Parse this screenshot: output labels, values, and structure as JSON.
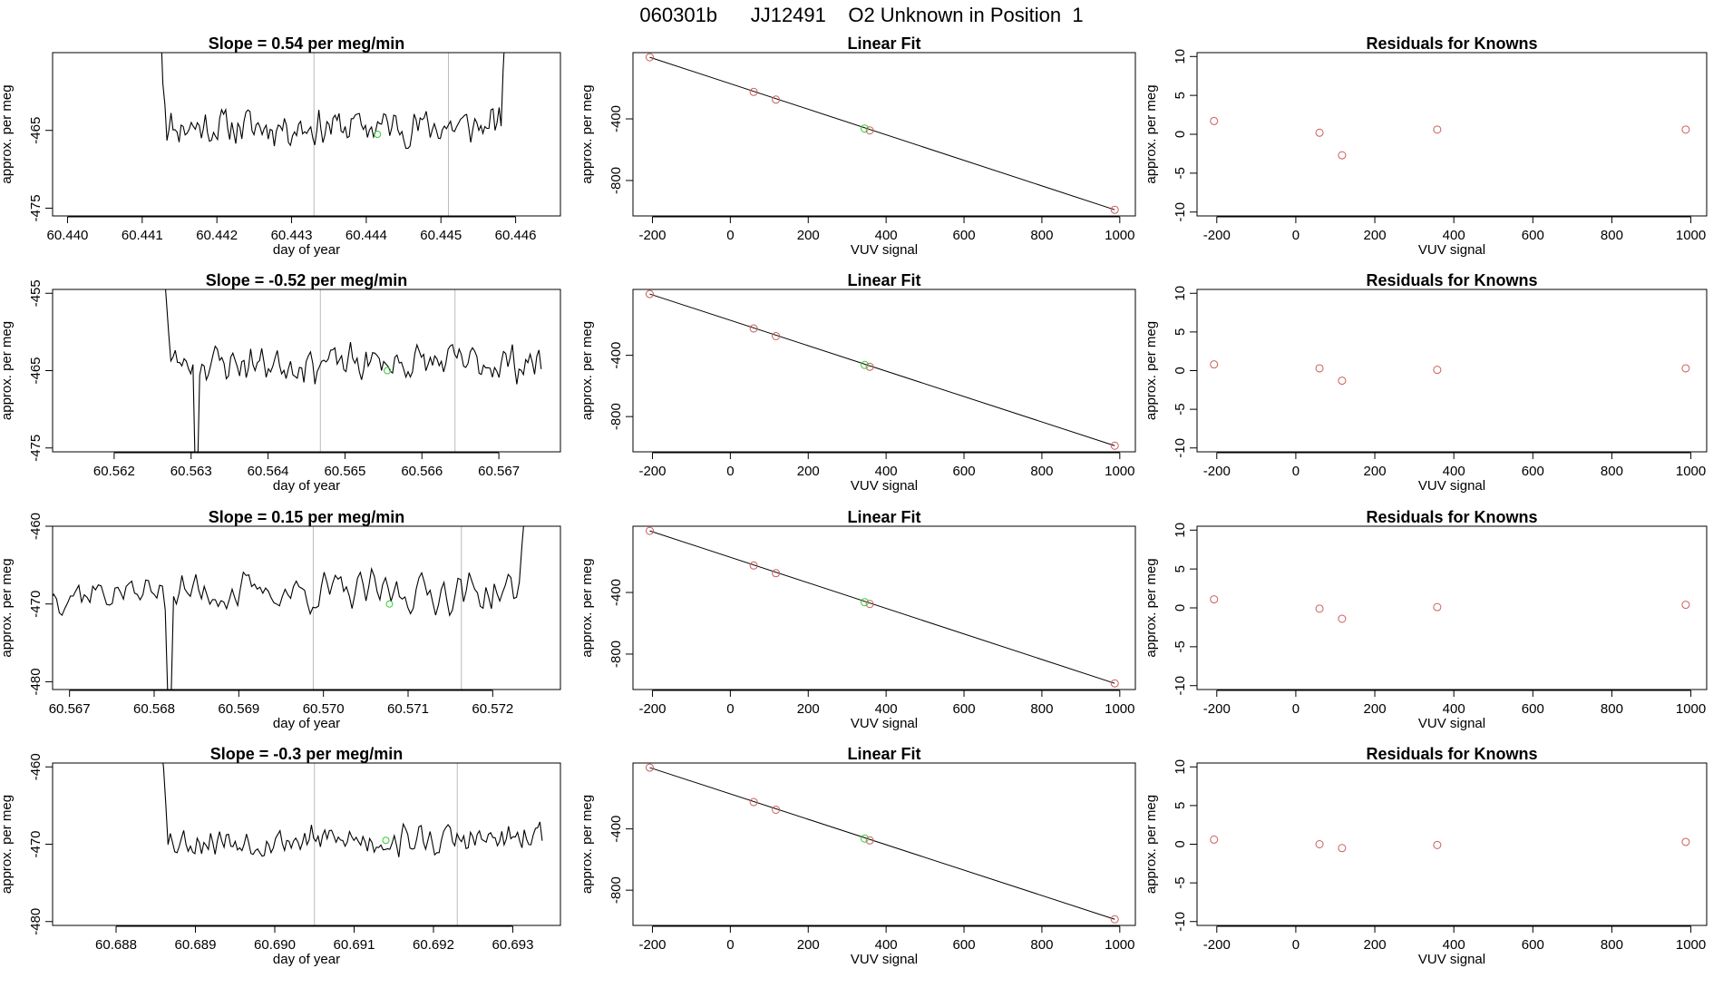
{
  "title": "060301b      JJ12491    O2 Unknown in Position  1",
  "colors": {
    "axis": "#000000",
    "trace": "#000000",
    "known": "#cd5c5c",
    "unknown": "#33cc33",
    "vline": "#bbbbbb"
  },
  "chart_data": [
    {
      "type": "line",
      "row": 0,
      "title": "Slope =  0.54  per meg/min",
      "xlabel": "day of year",
      "ylabel": "approx. per meg",
      "xlim": [
        60.4398,
        60.4466
      ],
      "ylim": [
        -476,
        -455
      ],
      "xticks": [
        "60.440",
        "60.441",
        "60.442",
        "60.443",
        "60.444",
        "60.445",
        "60.446"
      ],
      "yticks": [
        -465,
        -475
      ],
      "trace_start": 60.44125,
      "trace_end": 60.44586,
      "trace_mean": -464.5,
      "trace_amp": 3.0,
      "start_spike": [
        -459,
        -452
      ],
      "end_spike": -452,
      "seed": 11,
      "vlines": [
        60.4433,
        60.4451
      ],
      "unknown_point": {
        "x": 60.44415,
        "y": -465.5
      }
    },
    {
      "type": "line",
      "row": 1,
      "title": "Slope =  -0.52  per meg/min",
      "xlabel": "day of year",
      "ylabel": "approx. per meg",
      "xlim": [
        60.5612,
        60.5678
      ],
      "ylim": [
        -475.5,
        -454.5
      ],
      "xticks": [
        "60.562",
        "60.563",
        "60.564",
        "60.565",
        "60.566",
        "60.567"
      ],
      "yticks": [
        -455,
        -465,
        -475
      ],
      "trace_start": 60.56265,
      "trace_end": 60.56755,
      "trace_mean": -464.0,
      "trace_amp": 3.0,
      "start_spike": [
        -456,
        -452
      ],
      "dip": {
        "x": 60.56305,
        "y": -478
      },
      "seed": 23,
      "vlines": [
        60.56468,
        60.56643
      ],
      "unknown_point": {
        "x": 60.56555,
        "y": -465
      }
    },
    {
      "type": "line",
      "row": 2,
      "title": "Slope =  0.15  per meg/min",
      "xlabel": "day of year",
      "ylabel": "approx. per meg",
      "xlim": [
        60.5668,
        60.5728
      ],
      "ylim": [
        -481,
        -460
      ],
      "xticks": [
        "60.567",
        "60.568",
        "60.569",
        "60.570",
        "60.571",
        "60.572"
      ],
      "yticks": [
        -460,
        -470,
        -480
      ],
      "trace_start": 60.56678,
      "trace_end": 60.57238,
      "trace_mean": -468.5,
      "trace_amp": 3.2,
      "end_spike": -458,
      "dip": {
        "x": 60.56815,
        "y": -483
      },
      "seed": 37,
      "vlines": [
        60.56988,
        60.57163
      ],
      "unknown_point": {
        "x": 60.57078,
        "y": -470
      }
    },
    {
      "type": "line",
      "row": 3,
      "title": "Slope =  -0.3  per meg/min",
      "xlabel": "day of year",
      "ylabel": "approx. per meg",
      "xlim": [
        60.6872,
        60.6936
      ],
      "ylim": [
        -480.5,
        -459.5
      ],
      "xticks": [
        "60.688",
        "60.689",
        "60.690",
        "60.691",
        "60.692",
        "60.693"
      ],
      "yticks": [
        -460,
        -470,
        -480
      ],
      "trace_start": 60.68857,
      "trace_end": 60.69337,
      "trace_mean": -469.5,
      "trace_amp": 2.6,
      "start_spike": [
        -460,
        -458
      ],
      "seed": 53,
      "vlines": [
        60.6905,
        60.6923
      ],
      "unknown_point": {
        "x": 60.6914,
        "y": -469.5
      }
    },
    {
      "type": "scatter",
      "row": 0,
      "title": "Linear Fit",
      "xlabel": "VUV signal",
      "ylabel": "approx. per meg",
      "xlim": [
        -250,
        1040
      ],
      "ylim": [
        -1030,
        30
      ],
      "xticks": [
        -200,
        0,
        200,
        400,
        600,
        800,
        1000
      ],
      "yticks": [
        -400,
        -800
      ],
      "fit_line": [
        [
          -207,
          0
        ],
        [
          987,
          -990
        ]
      ],
      "known_points": [
        [
          -207,
          0
        ],
        [
          60,
          -225
        ],
        [
          117,
          -275
        ],
        [
          358,
          -475
        ],
        [
          987,
          -990
        ]
      ],
      "unknown_point": [
        345,
        -463
      ]
    },
    {
      "type": "scatter",
      "row": 1,
      "title": "Linear Fit",
      "xlabel": "VUV signal",
      "ylabel": "approx. per meg",
      "xlim": [
        -250,
        1040
      ],
      "ylim": [
        -1030,
        30
      ],
      "xticks": [
        -200,
        0,
        200,
        400,
        600,
        800,
        1000
      ],
      "yticks": [
        -400,
        -800
      ],
      "fit_line": [
        [
          -207,
          0
        ],
        [
          987,
          -990
        ]
      ],
      "known_points": [
        [
          -207,
          0
        ],
        [
          60,
          -225
        ],
        [
          117,
          -275
        ],
        [
          358,
          -475
        ],
        [
          987,
          -990
        ]
      ],
      "unknown_point": [
        345,
        -463
      ]
    },
    {
      "type": "scatter",
      "row": 2,
      "title": "Linear Fit",
      "xlabel": "VUV signal",
      "ylabel": "approx. per meg",
      "xlim": [
        -250,
        1040
      ],
      "ylim": [
        -1030,
        30
      ],
      "xticks": [
        -200,
        0,
        200,
        400,
        600,
        800,
        1000
      ],
      "yticks": [
        -400,
        -800
      ],
      "fit_line": [
        [
          -207,
          0
        ],
        [
          987,
          -990
        ]
      ],
      "known_points": [
        [
          -207,
          0
        ],
        [
          60,
          -225
        ],
        [
          117,
          -275
        ],
        [
          358,
          -475
        ],
        [
          987,
          -990
        ]
      ],
      "unknown_point": [
        345,
        -463
      ]
    },
    {
      "type": "scatter",
      "row": 3,
      "title": "Linear Fit",
      "xlabel": "VUV signal",
      "ylabel": "approx. per meg",
      "xlim": [
        -250,
        1040
      ],
      "ylim": [
        -1030,
        30
      ],
      "xticks": [
        -200,
        0,
        200,
        400,
        600,
        800,
        1000
      ],
      "yticks": [
        -400,
        -800
      ],
      "fit_line": [
        [
          -207,
          0
        ],
        [
          987,
          -990
        ]
      ],
      "known_points": [
        [
          -207,
          0
        ],
        [
          60,
          -225
        ],
        [
          117,
          -275
        ],
        [
          358,
          -475
        ],
        [
          987,
          -990
        ]
      ],
      "unknown_point": [
        345,
        -463
      ]
    },
    {
      "type": "scatter",
      "row": 0,
      "title": "Residuals for Knowns",
      "xlabel": "VUV signal",
      "ylabel": "approx. per meg",
      "xlim": [
        -250,
        1040
      ],
      "ylim": [
        -10.5,
        10.5
      ],
      "xticks": [
        -200,
        0,
        200,
        400,
        600,
        800,
        1000
      ],
      "yticks": [
        10,
        5,
        0,
        -5,
        -10
      ],
      "known_points": [
        [
          -207,
          1.7
        ],
        [
          60,
          0.2
        ],
        [
          117,
          -2.7
        ],
        [
          358,
          0.6
        ],
        [
          987,
          0.6
        ]
      ]
    },
    {
      "type": "scatter",
      "row": 1,
      "title": "Residuals for Knowns",
      "xlabel": "VUV signal",
      "ylabel": "approx. per meg",
      "xlim": [
        -250,
        1040
      ],
      "ylim": [
        -10.5,
        10.5
      ],
      "xticks": [
        -200,
        0,
        200,
        400,
        600,
        800,
        1000
      ],
      "yticks": [
        10,
        5,
        0,
        -5,
        -10
      ],
      "known_points": [
        [
          -207,
          0.8
        ],
        [
          60,
          0.3
        ],
        [
          117,
          -1.3
        ],
        [
          358,
          0.1
        ],
        [
          987,
          0.3
        ]
      ]
    },
    {
      "type": "scatter",
      "row": 2,
      "title": "Residuals for Knowns",
      "xlabel": "VUV signal",
      "ylabel": "approx. per meg",
      "xlim": [
        -250,
        1040
      ],
      "ylim": [
        -10.5,
        10.5
      ],
      "xticks": [
        -200,
        0,
        200,
        400,
        600,
        800,
        1000
      ],
      "yticks": [
        10,
        5,
        0,
        -5,
        -10
      ],
      "known_points": [
        [
          -207,
          1.1
        ],
        [
          60,
          -0.1
        ],
        [
          117,
          -1.4
        ],
        [
          358,
          0.1
        ],
        [
          987,
          0.4
        ]
      ]
    },
    {
      "type": "scatter",
      "row": 3,
      "title": "Residuals for Knowns",
      "xlabel": "VUV signal",
      "ylabel": "approx. per meg",
      "xlim": [
        -250,
        1040
      ],
      "ylim": [
        -10.5,
        10.5
      ],
      "xticks": [
        -200,
        0,
        200,
        400,
        600,
        800,
        1000
      ],
      "yticks": [
        10,
        5,
        0,
        -5,
        -10
      ],
      "known_points": [
        [
          -207,
          0.6
        ],
        [
          60,
          0.0
        ],
        [
          117,
          -0.5
        ],
        [
          358,
          -0.1
        ],
        [
          987,
          0.3
        ]
      ]
    }
  ]
}
